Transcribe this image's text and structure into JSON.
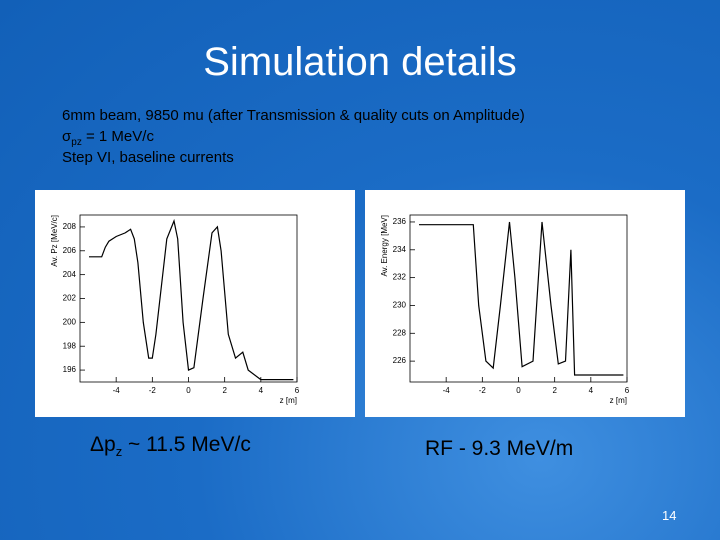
{
  "title": "Simulation details",
  "lines": [
    "6mm beam, 9850 mu (after Transmission & quality cuts on Amplitude)",
    {
      "symbol": "σ",
      "sub": "pz",
      "rest": " = 1 MeV/c"
    },
    "Step VI, baseline currents"
  ],
  "chart_data": [
    {
      "type": "line",
      "y_label": "Av. Pz [MeV/c]",
      "x_label": "z [m]",
      "color": "#000000",
      "xlim": [
        -6,
        6
      ],
      "xticks": [
        -4,
        -2,
        0,
        2,
        4,
        6
      ],
      "ylim": [
        195,
        209
      ],
      "yticks": [
        196,
        198,
        200,
        202,
        204,
        206,
        208
      ],
      "x": [
        -5.5,
        -4.8,
        -4.6,
        -4.4,
        -4.0,
        -3.5,
        -3.2,
        -3.0,
        -2.8,
        -2.5,
        -2.2,
        -2.0,
        -1.8,
        -1.2,
        -0.8,
        -0.6,
        -0.3,
        0,
        0.3,
        0.8,
        1.3,
        1.6,
        1.8,
        2.2,
        2.6,
        3.0,
        3.3,
        4.0,
        5.8
      ],
      "values": [
        205.5,
        205.5,
        206.3,
        206.8,
        207.2,
        207.5,
        207.8,
        207,
        205,
        200,
        197,
        197,
        199,
        207,
        208.5,
        207,
        200,
        196,
        196.2,
        202,
        207.5,
        208,
        206,
        199,
        197,
        197.5,
        196,
        195.2,
        195.2
      ]
    },
    {
      "type": "line",
      "y_label": "Av. Energy [MeV]",
      "x_label": "z [m]",
      "color": "#000000",
      "xlim": [
        -6,
        6
      ],
      "xticks": [
        -4,
        -2,
        0,
        2,
        4,
        6
      ],
      "ylim": [
        224.5,
        236.5
      ],
      "yticks": [
        226,
        228,
        230,
        232,
        234,
        236
      ],
      "x": [
        -5.5,
        -2.5,
        -2.2,
        -1.8,
        -1.4,
        -1.0,
        -0.5,
        -0.2,
        0.2,
        0.8,
        1.3,
        1.8,
        2.2,
        2.6,
        2.9,
        3.1,
        5.8
      ],
      "values": [
        235.8,
        235.8,
        230,
        226,
        225.5,
        230,
        236,
        232,
        225.6,
        226,
        236,
        230,
        225.8,
        226,
        234,
        225,
        225
      ]
    }
  ],
  "captions": [
    {
      "symbol": "Δ",
      "main": "p",
      "sub": "z",
      "rest": " ~ 11.5 MeV/c"
    },
    "RF  - 9.3 MeV/m"
  ],
  "page_number": "14"
}
